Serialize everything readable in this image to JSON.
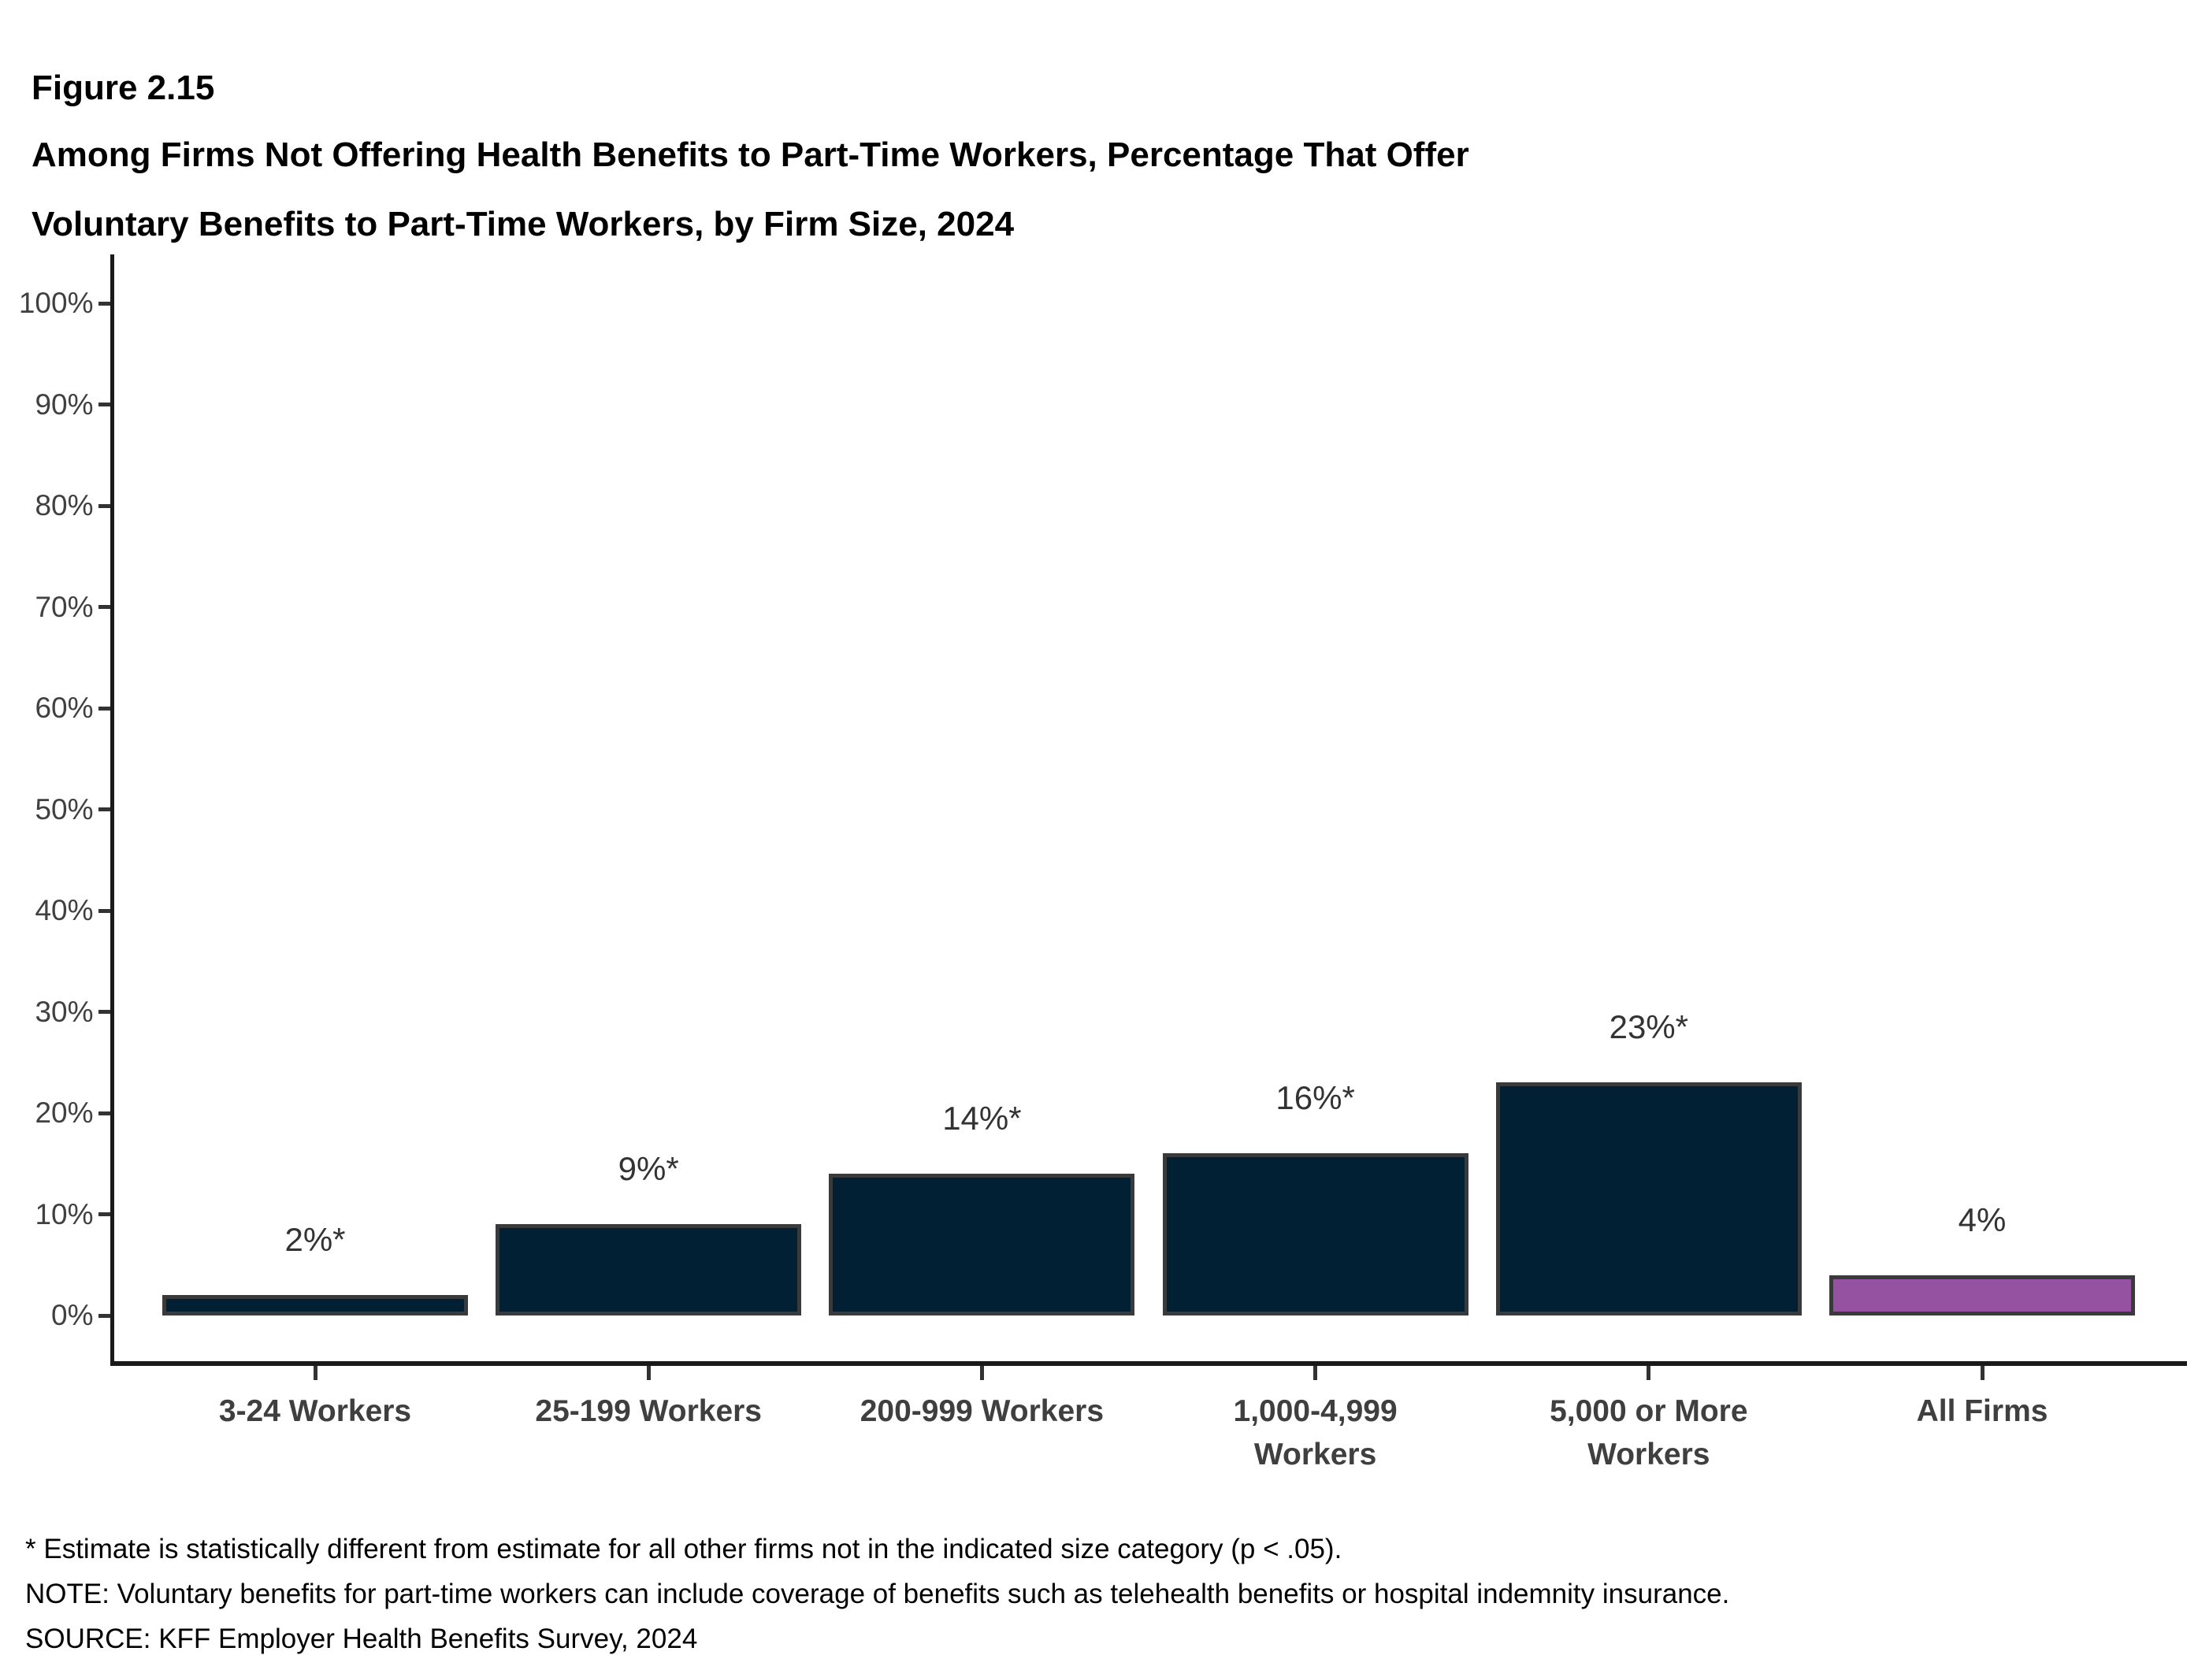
{
  "figure": {
    "label": "Figure 2.15",
    "title": "Among Firms Not Offering Health Benefits to Part-Time Workers, Percentage That Offer\nVoluntary Benefits to Part-Time Workers, by Firm Size, 2024"
  },
  "chart_data": {
    "type": "bar",
    "title": "Among Firms Not Offering Health Benefits to Part-Time Workers, Percentage That Offer Voluntary Benefits to Part-Time Workers, by Firm Size, 2024",
    "categories": [
      "3-24 Workers",
      "25-199 Workers",
      "200-999 Workers",
      "1,000-4,999\nWorkers",
      "5,000 or More\nWorkers",
      "All Firms"
    ],
    "values": [
      2,
      9,
      14,
      16,
      23,
      4
    ],
    "bar_labels": [
      "2%*",
      "9%*",
      "14%*",
      "16%*",
      "23%*",
      "4%"
    ],
    "xlabel": "",
    "ylabel": "",
    "ylim": [
      0,
      100
    ],
    "ytick_step": 10,
    "ytick_labels": [
      "0%",
      "10%",
      "20%",
      "30%",
      "40%",
      "50%",
      "60%",
      "70%",
      "80%",
      "90%",
      "100%"
    ],
    "grid": false,
    "legend_position": "none",
    "highlight_category": "All Firms",
    "colors": {
      "bar_default": "#022033",
      "bar_highlight": "#9452a0",
      "bar_border": "#3a3a3a",
      "axis_line": "#1a1a1a",
      "tick_text": "#404040",
      "category_text": "#3f3f3f",
      "value_label_text": "#333333"
    }
  },
  "footnotes": {
    "significance": "* Estimate is statistically different from estimate for all other firms not in the indicated size category (p < .05).",
    "note": "NOTE: Voluntary benefits for part-time workers can include coverage of benefits such as telehealth benefits or hospital indemnity insurance.",
    "source": "SOURCE: KFF Employer Health Benefits Survey, 2024"
  }
}
